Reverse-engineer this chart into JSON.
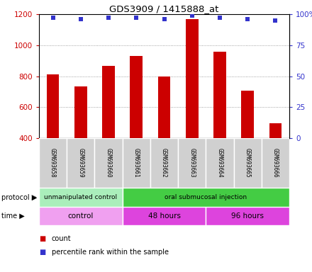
{
  "title": "GDS3909 / 1415888_at",
  "samples": [
    "GSM693658",
    "GSM693659",
    "GSM693660",
    "GSM693661",
    "GSM693662",
    "GSM693663",
    "GSM693664",
    "GSM693665",
    "GSM693666"
  ],
  "bar_values": [
    810,
    735,
    865,
    930,
    800,
    1170,
    960,
    705,
    495
  ],
  "percentile_values": [
    97,
    96,
    97,
    97,
    96,
    99,
    97,
    96,
    95
  ],
  "ylim_left": [
    400,
    1200
  ],
  "ylim_right": [
    0,
    100
  ],
  "yticks_left": [
    400,
    600,
    800,
    1000,
    1200
  ],
  "yticks_right": [
    0,
    25,
    50,
    75,
    100
  ],
  "bar_color": "#cc0000",
  "dot_color": "#3333cc",
  "protocol_groups": [
    {
      "label": "unmanipulated control",
      "start": 0,
      "end": 3,
      "color": "#aaeebb"
    },
    {
      "label": "oral submucosal injection",
      "start": 3,
      "end": 9,
      "color": "#44cc44"
    }
  ],
  "time_groups": [
    {
      "label": "control",
      "start": 0,
      "end": 3,
      "color": "#f0a0f0"
    },
    {
      "label": "48 hours",
      "start": 3,
      "end": 6,
      "color": "#dd44dd"
    },
    {
      "label": "96 hours",
      "start": 6,
      "end": 9,
      "color": "#dd44dd"
    }
  ],
  "legend_count_color": "#cc0000",
  "legend_percentile_color": "#3333cc",
  "grid_color": "#888888",
  "axis_label_color_left": "#cc0000",
  "axis_label_color_right": "#3333cc",
  "bg_color": "#ffffff"
}
